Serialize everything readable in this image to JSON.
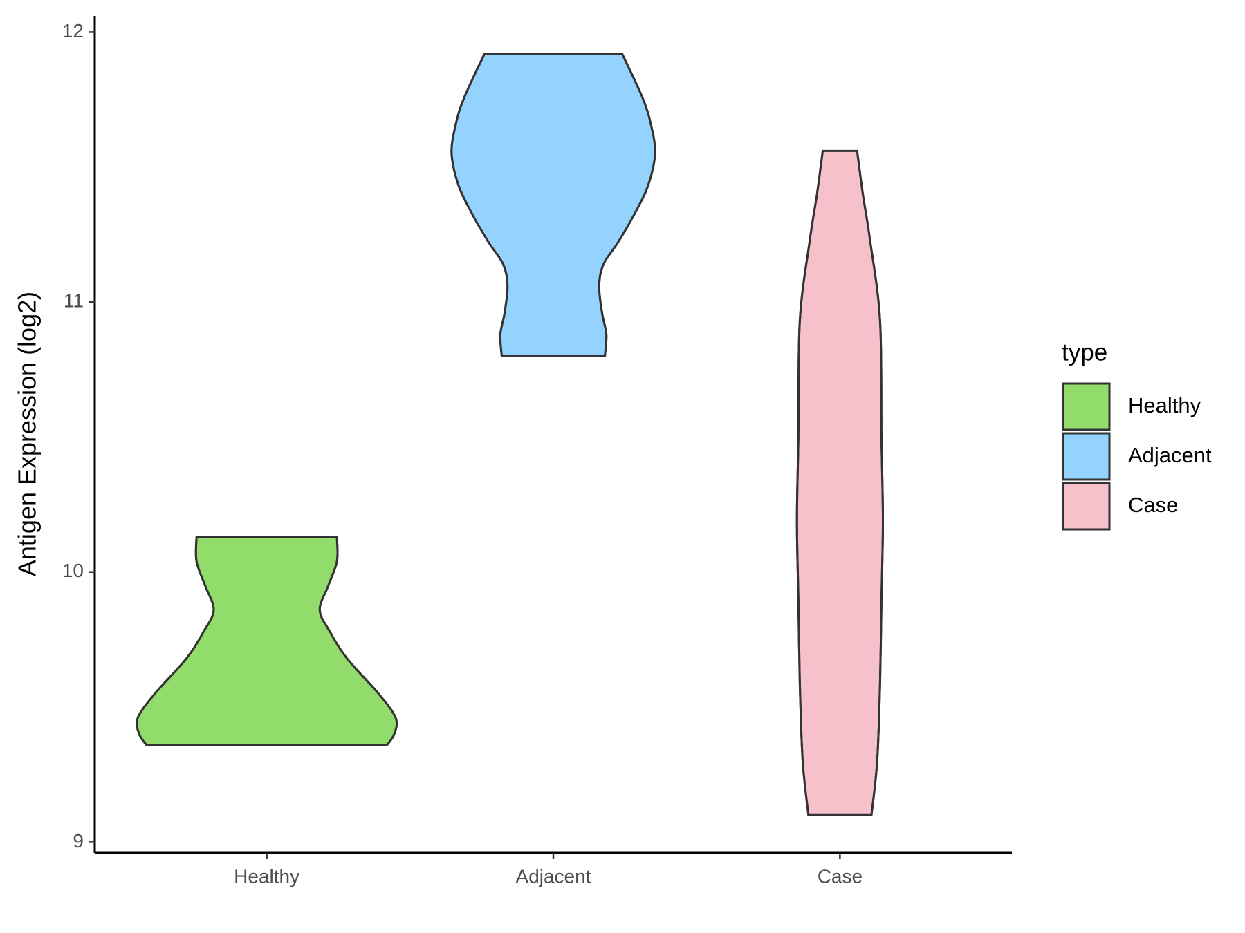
{
  "chart_data": {
    "type": "violin",
    "y_label": "Antigen Expression (log2)",
    "categories": [
      "Healthy",
      "Adjacent",
      "Case"
    ],
    "legend_title": "type",
    "legend_position": "right",
    "ylim": [
      8.96,
      12.06
    ],
    "yticks": [
      9,
      10,
      11,
      12
    ],
    "series": [
      {
        "name": "Healthy",
        "color": "#92dc6b",
        "y": [
          9.36,
          9.4,
          9.46,
          9.55,
          9.68,
          9.78,
          9.86,
          9.95,
          10.04,
          10.13
        ],
        "widths": [
          0.84,
          0.89,
          0.9,
          0.78,
          0.56,
          0.44,
          0.37,
          0.43,
          0.49,
          0.49
        ]
      },
      {
        "name": "Adjacent",
        "color": "#93d3fe",
        "y": [
          10.8,
          10.88,
          10.96,
          11.06,
          11.14,
          11.22,
          11.32,
          11.43,
          11.55,
          11.66,
          11.76,
          11.92
        ],
        "widths": [
          0.36,
          0.37,
          0.34,
          0.32,
          0.35,
          0.45,
          0.56,
          0.66,
          0.71,
          0.68,
          0.62,
          0.48
        ]
      },
      {
        "name": "Case",
        "color": "#f7c1cc",
        "y": [
          9.1,
          9.3,
          9.59,
          9.9,
          10.19,
          10.5,
          10.93,
          11.23,
          11.4,
          11.56
        ],
        "widths": [
          0.22,
          0.26,
          0.28,
          0.29,
          0.3,
          0.29,
          0.28,
          0.21,
          0.16,
          0.12
        ]
      }
    ]
  }
}
